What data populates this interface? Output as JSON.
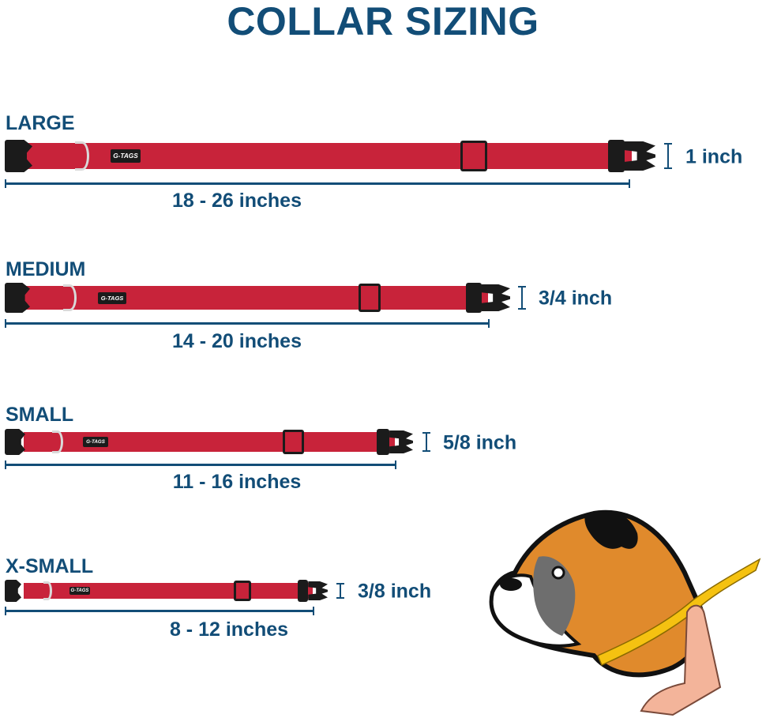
{
  "title": "COLLAR SIZING",
  "brand_tag": "G-TAGS",
  "colors": {
    "text": "#124d77",
    "collar": "#c8233a",
    "hardware": "#1b1b1b",
    "ring": "#d9d9d9"
  },
  "sizes": [
    {
      "label": "LARGE",
      "range": "18 - 26 inches",
      "width": "1 inch"
    },
    {
      "label": "MEDIUM",
      "range": "14 - 20 inches",
      "width": "3/4 inch"
    },
    {
      "label": "SMALL",
      "range": "11 - 16 inches",
      "width": "5/8 inch"
    },
    {
      "label": "X-SMALL",
      "range": "8 - 12 inches",
      "width": "3/8 inch"
    }
  ],
  "illustration": "boxer-dog-neck-measuring-tape"
}
